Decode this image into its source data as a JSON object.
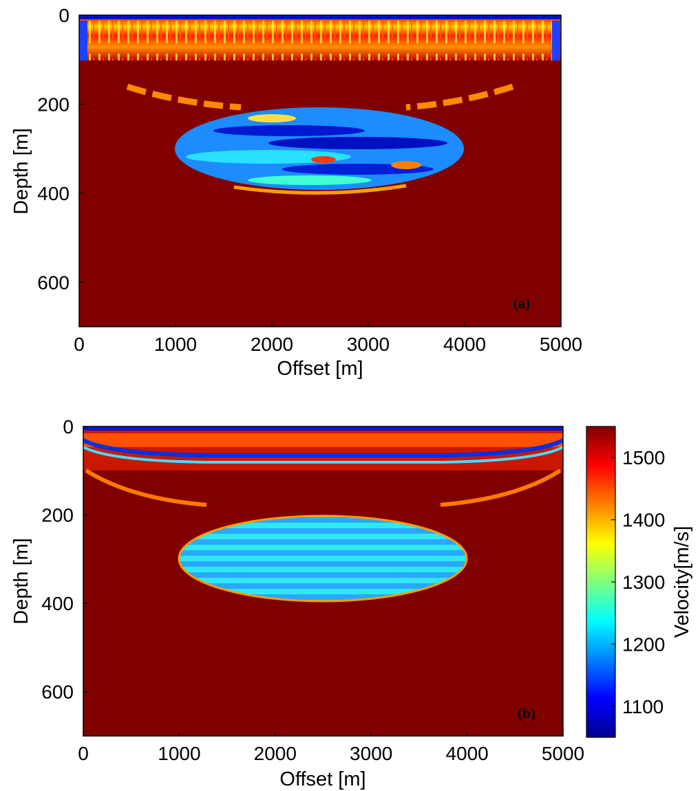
{
  "chart_data": [
    {
      "type": "heatmap",
      "panel_label": "(a)",
      "xlabel": "Offset [m]",
      "ylabel": "Depth [m]",
      "xlim": [
        0,
        5000
      ],
      "ylim": [
        700,
        0
      ],
      "xticks": [
        "0",
        "1000",
        "2000",
        "3000",
        "4000",
        "5000"
      ],
      "yticks": [
        "0",
        "200",
        "400",
        "600"
      ],
      "background_velocity": 1550,
      "near_surface_layer_depth": [
        0,
        100
      ],
      "anomaly": {
        "shape": "ellipse",
        "center_offset": 2500,
        "center_depth": 300,
        "half_width": 1500,
        "half_height": 90,
        "velocity_range": [
          1100,
          1300
        ]
      }
    },
    {
      "type": "heatmap",
      "panel_label": "(b)",
      "xlabel": "Offset [m]",
      "ylabel": "Depth [m]",
      "xlim": [
        0,
        5000
      ],
      "ylim": [
        700,
        0
      ],
      "xticks": [
        "0",
        "1000",
        "2000",
        "3000",
        "4000",
        "5000"
      ],
      "yticks": [
        "0",
        "200",
        "400",
        "600"
      ],
      "background_velocity": 1550,
      "near_surface_layer_depth": [
        0,
        100
      ],
      "anomaly": {
        "shape": "ellipse",
        "center_offset": 2500,
        "center_depth": 300,
        "half_width": 1500,
        "half_height": 90,
        "velocity_range": [
          1150,
          1280
        ]
      },
      "colorbar": {
        "label": "Velocity[m/s]",
        "range": [
          1050,
          1550
        ],
        "ticks": [
          "1100",
          "1200",
          "1300",
          "1400",
          "1500"
        ],
        "colormap": "jet",
        "colors": [
          "#00008f",
          "#0000ff",
          "#00ffff",
          "#ffff00",
          "#ff0000",
          "#800000"
        ]
      }
    }
  ]
}
